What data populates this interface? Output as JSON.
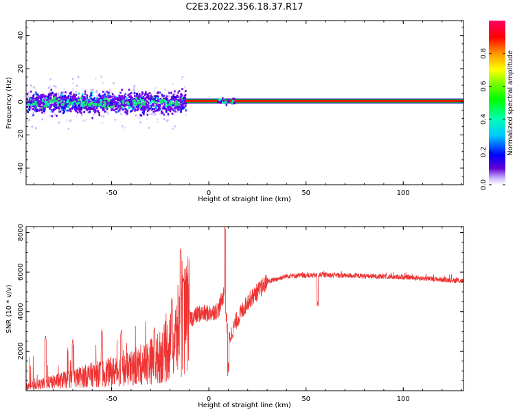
{
  "figure": {
    "title": "C2E3.2022.356.18.37.R17"
  },
  "chart_data": [
    {
      "type": "heatmap",
      "name": "spectrogram",
      "xlabel": "Height of straight line (km)",
      "ylabel": "Frequency (Hz)",
      "xlim": [
        -94,
        131
      ],
      "ylim": [
        -50,
        49
      ],
      "xticks": [
        -50,
        0,
        50,
        100
      ],
      "yticks": [
        -40,
        -20,
        0,
        20,
        40
      ],
      "colorbar": {
        "label": "Normalized spectral amplitude",
        "range": [
          0,
          1
        ],
        "ticks": [
          0.0,
          0.2,
          0.4,
          0.6,
          0.8
        ],
        "tick_labels": [
          "0.0",
          "0.2",
          "0.4",
          "0.6",
          "0.8"
        ]
      },
      "features": {
        "noisy_band_x_range": [
          -94,
          -12
        ],
        "noisy_band_spread_hz": 8,
        "carrier_line_x_range": [
          -12,
          131
        ],
        "carrier_frequency_hz": 0.5,
        "carrier_amplitude": 0.85
      },
      "colors": [
        "#5a00c8",
        "#0000ff",
        "#00c8ff",
        "#00ff7f",
        "#7fff00",
        "#ff8000",
        "#ff0000"
      ]
    },
    {
      "type": "line",
      "name": "snr",
      "xlabel": "Height of straight line (km)",
      "ylabel": "SNR (10 * v/v)",
      "xlim": [
        -94,
        131
      ],
      "ylim": [
        0,
        8300
      ],
      "xticks": [
        -50,
        0,
        50,
        100
      ],
      "yticks": [
        2000,
        4000,
        6000,
        8000
      ],
      "color": "#ee3333",
      "profile": [
        {
          "x": -94,
          "y": 200
        },
        {
          "x": -80,
          "y": 450
        },
        {
          "x": -60,
          "y": 800
        },
        {
          "x": -40,
          "y": 1100
        },
        {
          "x": -25,
          "y": 1700
        },
        {
          "x": -18,
          "y": 2400
        },
        {
          "x": -14,
          "y": 3500
        },
        {
          "x": -10,
          "y": 3600
        },
        {
          "x": -5,
          "y": 3900
        },
        {
          "x": 0,
          "y": 3900
        },
        {
          "x": 5,
          "y": 4100
        },
        {
          "x": 8,
          "y": 5000
        },
        {
          "x": 10,
          "y": 2500
        },
        {
          "x": 14,
          "y": 3500
        },
        {
          "x": 20,
          "y": 4500
        },
        {
          "x": 30,
          "y": 5500
        },
        {
          "x": 40,
          "y": 5800
        },
        {
          "x": 60,
          "y": 5850
        },
        {
          "x": 80,
          "y": 5800
        },
        {
          "x": 100,
          "y": 5750
        },
        {
          "x": 115,
          "y": 5650
        },
        {
          "x": 131,
          "y": 5550
        }
      ],
      "spikes": [
        {
          "x": -84,
          "y": 2800
        },
        {
          "x": -70,
          "y": 2600
        },
        {
          "x": -55,
          "y": 3100
        },
        {
          "x": -45,
          "y": 3100
        },
        {
          "x": -28,
          "y": 3200
        },
        {
          "x": -19,
          "y": 4700
        },
        {
          "x": -14.5,
          "y": 7200
        },
        {
          "x": -13,
          "y": 5700
        },
        {
          "x": 8.3,
          "y": 8300
        },
        {
          "x": 56,
          "y": 4500
        }
      ]
    }
  ]
}
